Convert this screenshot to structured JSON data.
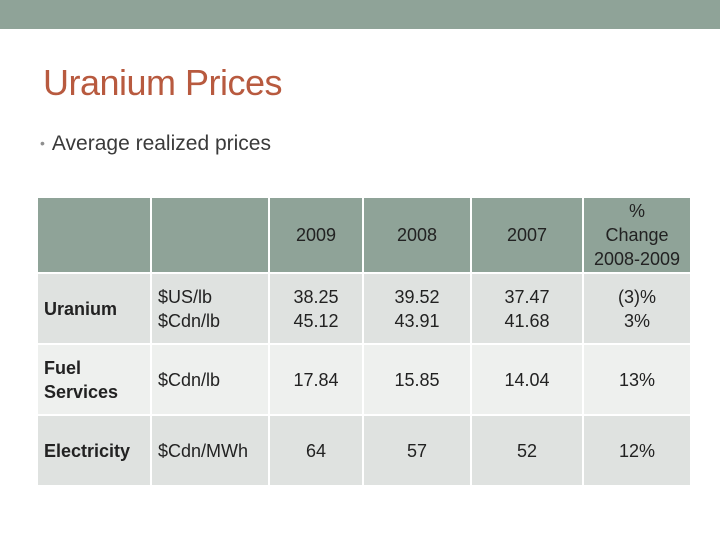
{
  "slide": {
    "title": "Uranium Prices",
    "bullet": "Average realized prices"
  },
  "table": {
    "headers": [
      "",
      "",
      "2009",
      "2008",
      "2007",
      "%\nChange\n2008-2009"
    ],
    "rows": [
      [
        "Uranium",
        "$US/lb\n$Cdn/lb",
        "38.25\n45.12",
        "39.52\n43.91",
        "37.47\n41.68",
        "(3)%\n3%"
      ],
      [
        "Fuel\nServices",
        "$Cdn/lb",
        "17.84",
        "15.85",
        "14.04",
        "13%"
      ],
      [
        "Electricity",
        "$Cdn/MWh",
        "64",
        "57",
        "52",
        "12%"
      ]
    ]
  },
  "colors": {
    "band": "#8fa398",
    "title": "#b85a3f",
    "cell_dark": "#dfe2e0",
    "cell_light": "#eef0ee"
  }
}
